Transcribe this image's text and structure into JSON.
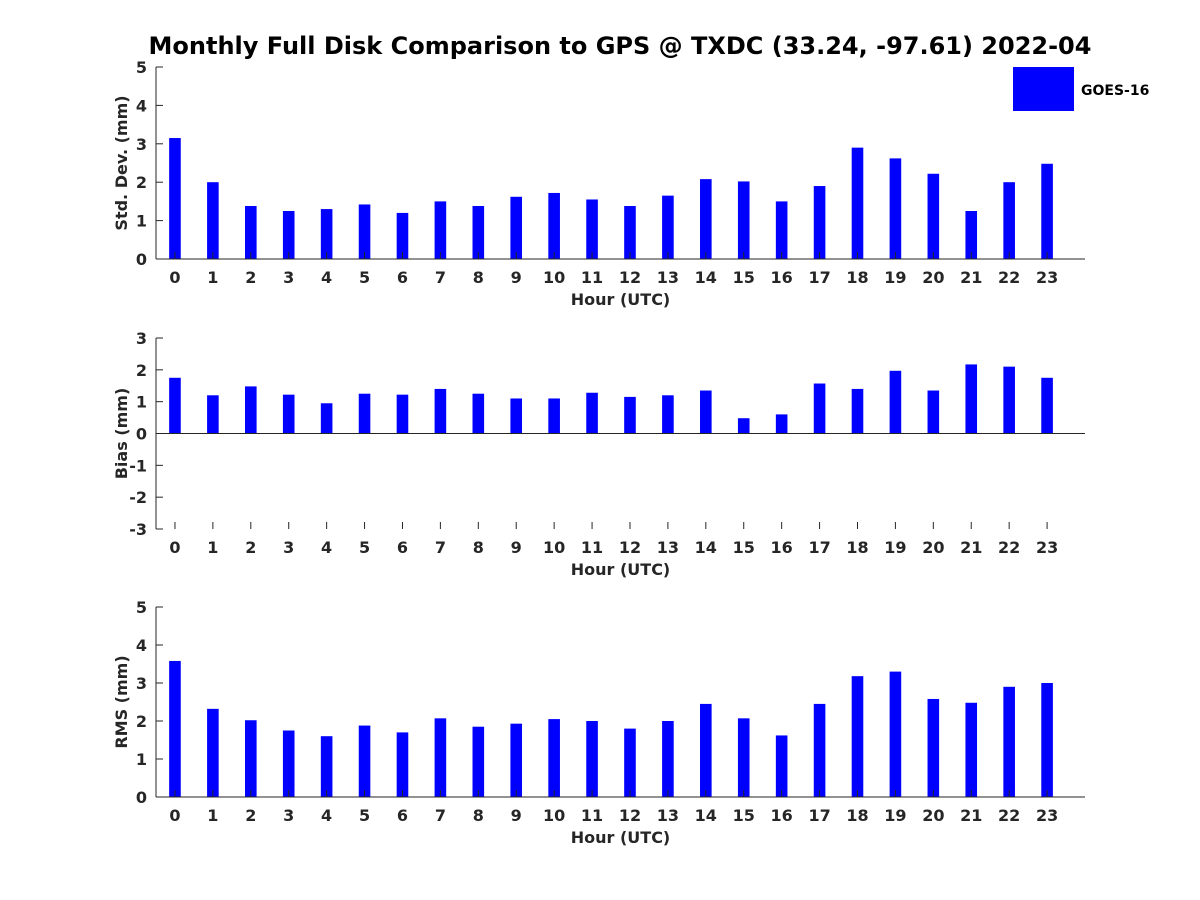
{
  "chart_data": [
    {
      "type": "bar",
      "title": "Monthly Full Disk Comparison to GPS @ TXDC (33.24, -97.61) 2022-04",
      "xlabel": "Hour (UTC)",
      "ylabel": "Std. Dev. (mm)",
      "ylim": [
        0,
        5
      ],
      "yticks": [
        "0",
        "1",
        "2",
        "3",
        "4",
        "5"
      ],
      "categories": [
        "0",
        "1",
        "2",
        "3",
        "4",
        "5",
        "6",
        "7",
        "8",
        "9",
        "10",
        "11",
        "12",
        "13",
        "14",
        "15",
        "16",
        "17",
        "18",
        "19",
        "20",
        "21",
        "22",
        "23"
      ],
      "series": [
        {
          "name": "GOES-16",
          "color": "#0000ff",
          "values": [
            3.15,
            2.0,
            1.38,
            1.25,
            1.3,
            1.42,
            1.2,
            1.5,
            1.38,
            1.62,
            1.72,
            1.55,
            1.38,
            1.65,
            2.08,
            2.02,
            1.5,
            1.9,
            2.9,
            2.62,
            2.22,
            1.25,
            2.0,
            2.48
          ]
        }
      ],
      "legend": {
        "position": "top-right",
        "label": "GOES-16"
      }
    },
    {
      "type": "bar",
      "xlabel": "Hour (UTC)",
      "ylabel": "Bias (mm)",
      "ylim": [
        -3,
        3
      ],
      "yticks": [
        "-3",
        "-2",
        "-1",
        "0",
        "1",
        "2",
        "3"
      ],
      "categories": [
        "0",
        "1",
        "2",
        "3",
        "4",
        "5",
        "6",
        "7",
        "8",
        "9",
        "10",
        "11",
        "12",
        "13",
        "14",
        "15",
        "16",
        "17",
        "18",
        "19",
        "20",
        "21",
        "22",
        "23"
      ],
      "series": [
        {
          "name": "GOES-16",
          "color": "#0000ff",
          "values": [
            1.75,
            1.2,
            1.48,
            1.22,
            0.95,
            1.25,
            1.22,
            1.4,
            1.25,
            1.1,
            1.1,
            1.28,
            1.15,
            1.2,
            1.35,
            0.48,
            0.6,
            1.57,
            1.4,
            1.97,
            1.35,
            2.17,
            2.1,
            1.75
          ]
        }
      ]
    },
    {
      "type": "bar",
      "xlabel": "Hour (UTC)",
      "ylabel": "RMS (mm)",
      "ylim": [
        0,
        5
      ],
      "yticks": [
        "0",
        "1",
        "2",
        "3",
        "4",
        "5"
      ],
      "categories": [
        "0",
        "1",
        "2",
        "3",
        "4",
        "5",
        "6",
        "7",
        "8",
        "9",
        "10",
        "11",
        "12",
        "13",
        "14",
        "15",
        "16",
        "17",
        "18",
        "19",
        "20",
        "21",
        "22",
        "23"
      ],
      "series": [
        {
          "name": "GOES-16",
          "color": "#0000ff",
          "values": [
            3.58,
            2.32,
            2.02,
            1.75,
            1.6,
            1.88,
            1.7,
            2.07,
            1.85,
            1.93,
            2.05,
            2.0,
            1.8,
            2.0,
            2.45,
            2.07,
            1.62,
            2.45,
            3.18,
            3.3,
            2.58,
            2.48,
            2.9,
            3.0
          ]
        }
      ]
    }
  ]
}
